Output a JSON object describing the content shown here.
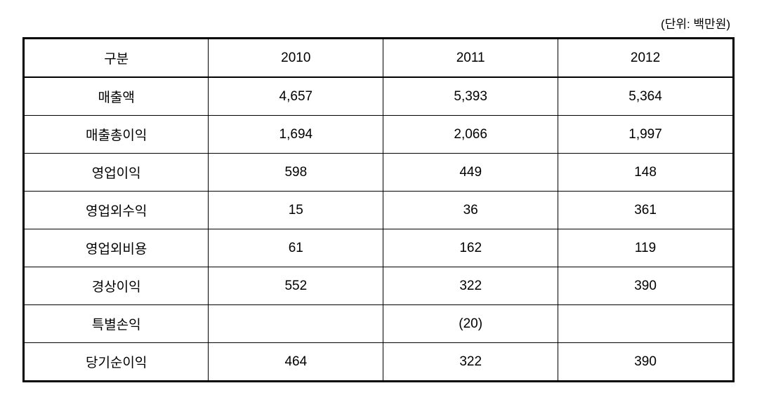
{
  "unit_label": "(단위: 백만원)",
  "table": {
    "type": "table",
    "background_color": "#ffffff",
    "border_color": "#000000",
    "text_color": "#000000",
    "header_fontsize": 19,
    "cell_fontsize": 19,
    "columns": [
      {
        "label": "구분",
        "width_pct": 26,
        "align": "center"
      },
      {
        "label": "2010",
        "width_pct": 24.66,
        "align": "center"
      },
      {
        "label": "2011",
        "width_pct": 24.66,
        "align": "center"
      },
      {
        "label": "2012",
        "width_pct": 24.66,
        "align": "center"
      }
    ],
    "rows": [
      {
        "label": "매출액",
        "values": [
          "4,657",
          "5,393",
          "5,364"
        ]
      },
      {
        "label": "매출총이익",
        "values": [
          "1,694",
          "2,066",
          "1,997"
        ]
      },
      {
        "label": "영업이익",
        "values": [
          "598",
          "449",
          "148"
        ]
      },
      {
        "label": "영업외수익",
        "values": [
          "15",
          "36",
          "361"
        ]
      },
      {
        "label": "영업외비용",
        "values": [
          "61",
          "162",
          "119"
        ]
      },
      {
        "label": "경상이익",
        "values": [
          "552",
          "322",
          "390"
        ]
      },
      {
        "label": "특별손익",
        "values": [
          "",
          "(20)",
          ""
        ]
      },
      {
        "label": "당기순이익",
        "values": [
          "464",
          "322",
          "390"
        ]
      }
    ]
  }
}
